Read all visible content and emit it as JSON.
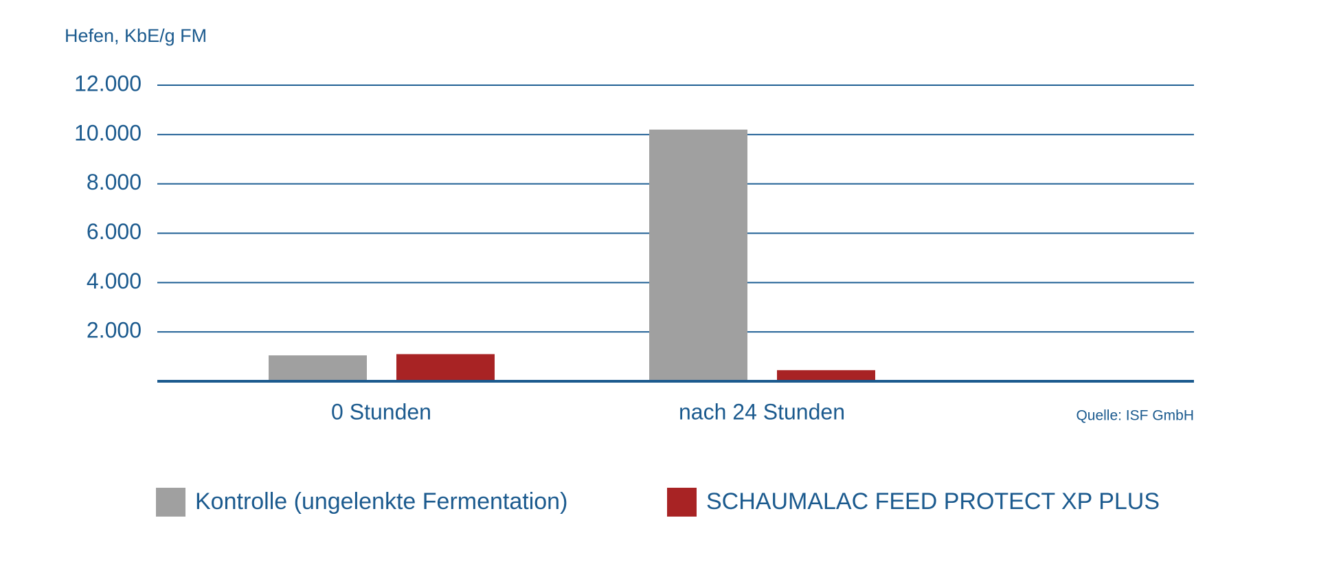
{
  "chart_data": {
    "type": "bar",
    "y_label": "Hefen, KbE/g FM",
    "source": "Quelle: ISF GmbH",
    "categories": [
      "0 Stunden",
      "nach 24 Stunden"
    ],
    "series": [
      {
        "name": "Kontrolle (ungelenkte Fermentation)",
        "color": "#a0a0a0",
        "values": [
          1050,
          10200
        ]
      },
      {
        "name": "SCHAUMALAC FEED PROTECT XP PLUS",
        "color": "#a82324",
        "values": [
          1100,
          450
        ]
      }
    ],
    "ylim": [
      0,
      12000
    ],
    "yticks": [
      {
        "value": 2000,
        "label": "2.000"
      },
      {
        "value": 4000,
        "label": "4.000"
      },
      {
        "value": 6000,
        "label": "6.000"
      },
      {
        "value": 8000,
        "label": "8.000"
      },
      {
        "value": 10000,
        "label": "10.000"
      },
      {
        "value": 12000,
        "label": "12.000"
      }
    ],
    "grid": true
  }
}
